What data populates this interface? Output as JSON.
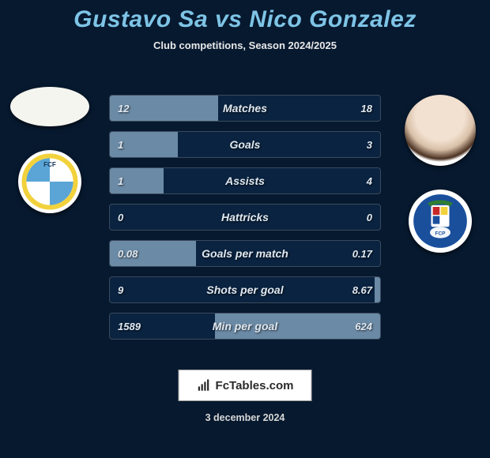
{
  "title": {
    "player1": "Gustavo Sa",
    "vs": "vs",
    "player2": "Nico Gonzalez",
    "color": "#7ec4e6",
    "font_size": 30
  },
  "subtitle": "Club competitions, Season 2024/2025",
  "bar_style": {
    "track_bg": "#0a2340",
    "fill_color": "#6b8aa5",
    "border_color": "#3a4a5c",
    "text_color": "#e0e8f0",
    "height": 34,
    "gap": 12,
    "label_fontsize": 14,
    "value_fontsize": 13
  },
  "metrics": [
    {
      "label": "Matches",
      "left_raw": 12,
      "right_raw": 18,
      "left_text": "12",
      "right_text": "18",
      "left_pct": 40,
      "right_pct": 0
    },
    {
      "label": "Goals",
      "left_raw": 1,
      "right_raw": 3,
      "left_text": "1",
      "right_text": "3",
      "left_pct": 25,
      "right_pct": 0
    },
    {
      "label": "Assists",
      "left_raw": 1,
      "right_raw": 4,
      "left_text": "1",
      "right_text": "4",
      "left_pct": 20,
      "right_pct": 0
    },
    {
      "label": "Hattricks",
      "left_raw": 0,
      "right_raw": 0,
      "left_text": "0",
      "right_text": "0",
      "left_pct": 0,
      "right_pct": 0
    },
    {
      "label": "Goals per match",
      "left_raw": 0.08,
      "right_raw": 0.17,
      "left_text": "0.08",
      "right_text": "0.17",
      "left_pct": 32,
      "right_pct": 0
    },
    {
      "label": "Shots per goal",
      "left_raw": 9,
      "right_raw": 8.67,
      "left_text": "9",
      "right_text": "8.67",
      "left_pct": 0,
      "right_pct": 2
    },
    {
      "label": "Min per goal",
      "left_raw": 1589,
      "right_raw": 624,
      "left_text": "1589",
      "right_text": "624",
      "left_pct": 0,
      "right_pct": 61
    }
  ],
  "footer": {
    "site": "FcTables.com",
    "date": "3 december 2024",
    "text_color": "#2a2a2a",
    "date_color": "#d8d8d8"
  },
  "colors": {
    "page_bg": "#06192f",
    "club_left_yellow": "#f2d23c",
    "club_left_blue": "#5aa5d6",
    "porto_blue": "#1a4f9c",
    "porto_green": "#2e7d32",
    "porto_red": "#c62828"
  }
}
